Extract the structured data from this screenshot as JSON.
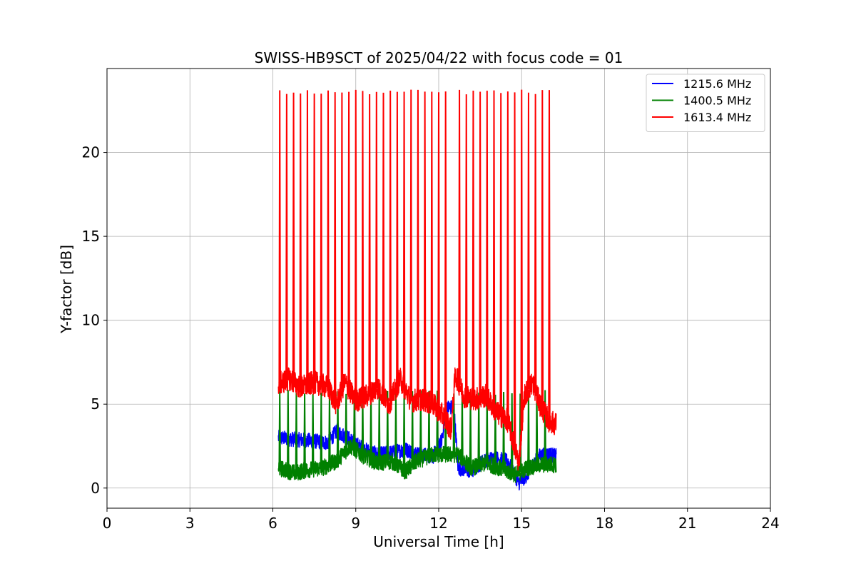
{
  "chart_data": {
    "type": "line",
    "title": "SWISS-HB9SCT of 2025/04/22 with focus code = 01",
    "xlabel": "Universal Time [h]",
    "ylabel": "Y-factor [dB]",
    "xlim": [
      0,
      24
    ],
    "ylim": [
      -1.2,
      25.0
    ],
    "xticks": [
      0,
      3,
      6,
      9,
      12,
      15,
      18,
      21,
      24
    ],
    "yticks": [
      0,
      5,
      10,
      15,
      20
    ],
    "grid": true,
    "legend_position": "top-right",
    "series": [
      {
        "name": "1215.6 MHz",
        "color": "#0000ff",
        "baseline": [
          [
            6.2,
            3.0
          ],
          [
            6.8,
            2.9
          ],
          [
            7.5,
            2.8
          ],
          [
            8.0,
            2.7
          ],
          [
            8.3,
            3.4
          ],
          [
            8.8,
            2.9
          ],
          [
            9.3,
            2.3
          ],
          [
            9.8,
            2.0
          ],
          [
            10.3,
            2.1
          ],
          [
            10.8,
            2.3
          ],
          [
            11.3,
            2.0
          ],
          [
            11.8,
            1.9
          ],
          [
            12.1,
            2.8
          ],
          [
            12.3,
            4.8
          ],
          [
            12.55,
            4.8
          ],
          [
            12.7,
            1.2
          ],
          [
            13.2,
            1.0
          ],
          [
            13.6,
            1.6
          ],
          [
            14.0,
            1.8
          ],
          [
            14.5,
            1.6
          ],
          [
            14.9,
            0.3
          ],
          [
            15.2,
            0.8
          ],
          [
            15.6,
            1.9
          ],
          [
            16.0,
            2.0
          ],
          [
            16.25,
            1.9
          ]
        ],
        "jitter": 0.45,
        "spikes": [],
        "spike_height": 0
      },
      {
        "name": "1400.5 MHz",
        "color": "#008000",
        "baseline": [
          [
            6.2,
            1.2
          ],
          [
            6.8,
            0.9
          ],
          [
            7.3,
            1.1
          ],
          [
            7.8,
            1.2
          ],
          [
            8.3,
            1.6
          ],
          [
            8.8,
            2.5
          ],
          [
            9.3,
            1.9
          ],
          [
            9.8,
            1.5
          ],
          [
            10.3,
            1.6
          ],
          [
            10.8,
            1.0
          ],
          [
            11.2,
            1.6
          ],
          [
            11.8,
            2.0
          ],
          [
            12.3,
            2.0
          ],
          [
            12.7,
            2.0
          ],
          [
            13.2,
            1.2
          ],
          [
            13.7,
            1.5
          ],
          [
            14.2,
            1.2
          ],
          [
            14.8,
            0.8
          ],
          [
            15.2,
            1.2
          ],
          [
            15.7,
            1.4
          ],
          [
            16.25,
            1.4
          ]
        ],
        "jitter": 0.5,
        "spikes": [
          6.25,
          6.55,
          6.85,
          7.15,
          7.45,
          7.75,
          8.05,
          8.35,
          8.65,
          8.95,
          9.25,
          9.55,
          9.85,
          10.15,
          10.45,
          10.75,
          11.05,
          11.35,
          11.65,
          11.95,
          12.25,
          12.55,
          12.85,
          13.15,
          13.45,
          13.75,
          14.05,
          14.35,
          14.65,
          14.95,
          15.25,
          15.55,
          15.85
        ],
        "spike_height": 5.7
      },
      {
        "name": "1613.4 MHz",
        "color": "#ff0000",
        "baseline": [
          [
            6.2,
            6.2
          ],
          [
            6.6,
            6.5
          ],
          [
            7.0,
            6.0
          ],
          [
            7.5,
            6.3
          ],
          [
            8.0,
            6.0
          ],
          [
            8.3,
            5.0
          ],
          [
            8.6,
            6.3
          ],
          [
            9.0,
            5.2
          ],
          [
            9.4,
            5.5
          ],
          [
            9.8,
            6.0
          ],
          [
            10.2,
            5.0
          ],
          [
            10.6,
            6.5
          ],
          [
            11.0,
            5.2
          ],
          [
            11.4,
            5.3
          ],
          [
            11.8,
            5.0
          ],
          [
            12.2,
            4.2
          ],
          [
            12.45,
            3.5
          ],
          [
            12.6,
            6.8
          ],
          [
            12.9,
            5.5
          ],
          [
            13.3,
            5.3
          ],
          [
            13.7,
            5.5
          ],
          [
            14.1,
            4.5
          ],
          [
            14.5,
            4.0
          ],
          [
            14.9,
            1.5
          ],
          [
            15.1,
            5.5
          ],
          [
            15.4,
            6.3
          ],
          [
            15.7,
            4.8
          ],
          [
            16.0,
            4.0
          ],
          [
            16.25,
            3.8
          ]
        ],
        "jitter": 0.7,
        "spikes": [
          6.25,
          6.5,
          6.75,
          7.0,
          7.25,
          7.5,
          7.75,
          8.0,
          8.25,
          8.5,
          8.75,
          9.0,
          9.25,
          9.5,
          9.75,
          10.0,
          10.25,
          10.5,
          10.75,
          11.0,
          11.25,
          11.5,
          11.75,
          12.0,
          12.25,
          12.75,
          13.0,
          13.25,
          13.5,
          13.75,
          14.0,
          14.25,
          14.5,
          14.75,
          15.0,
          15.25,
          15.5,
          15.75,
          16.0
        ],
        "spike_height": 23.6
      }
    ]
  }
}
